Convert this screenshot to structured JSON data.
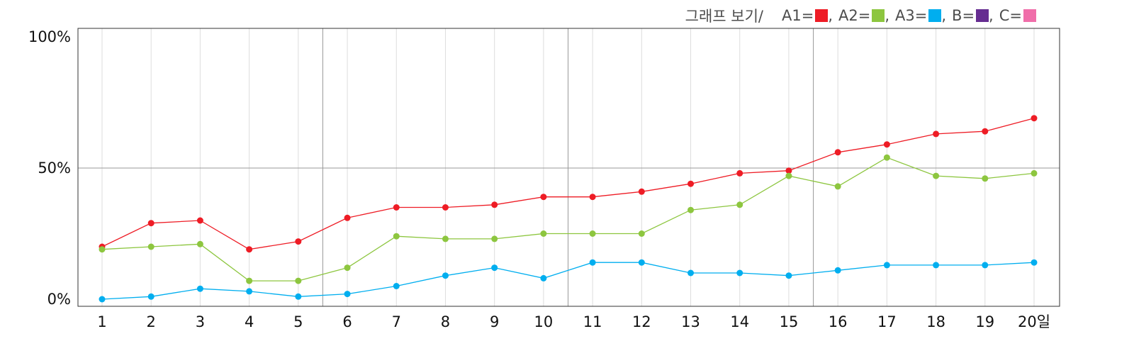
{
  "legend": {
    "title": "그래프 보기/",
    "items": [
      {
        "label": "A1=",
        "color": "#ee1c25"
      },
      {
        "label": "A2=",
        "color": "#8dc63f"
      },
      {
        "label": "A3=",
        "color": "#00aeef"
      },
      {
        "label": "B=",
        "color": "#662d91"
      },
      {
        "label": "C=",
        "color": "#f06eaa"
      }
    ],
    "separator": ","
  },
  "chart_data": {
    "type": "line",
    "x": [
      1,
      2,
      3,
      4,
      5,
      6,
      7,
      8,
      9,
      10,
      11,
      12,
      13,
      14,
      15,
      16,
      17,
      18,
      19,
      20
    ],
    "x_tick_labels": [
      "1",
      "2",
      "3",
      "4",
      "5",
      "6",
      "7",
      "8",
      "9",
      "10",
      "11",
      "12",
      "13",
      "14",
      "15",
      "16",
      "17",
      "18",
      "19",
      "20일"
    ],
    "ylim": [
      0,
      100
    ],
    "y_ticks": [
      0,
      50,
      100
    ],
    "y_tick_labels": [
      "0%",
      "50%",
      "100%"
    ],
    "grid": true,
    "legend_position": "top-right",
    "series": [
      {
        "name": "A1",
        "color": "#ee1c25",
        "values": [
          20,
          29,
          30,
          19,
          22,
          31,
          35,
          35,
          36,
          39,
          39,
          41,
          44,
          48,
          49,
          56,
          59,
          63,
          64,
          69
        ]
      },
      {
        "name": "A2",
        "color": "#8dc63f",
        "values": [
          19,
          20,
          21,
          7,
          7,
          12,
          24,
          23,
          23,
          25,
          25,
          25,
          34,
          36,
          47,
          43,
          54,
          47,
          46,
          48
        ]
      },
      {
        "name": "A3",
        "color": "#00aeef",
        "values": [
          0,
          1,
          4,
          3,
          1,
          2,
          5,
          9,
          12,
          8,
          14,
          14,
          10,
          10,
          9,
          11,
          13,
          13,
          13,
          14
        ]
      }
    ]
  }
}
